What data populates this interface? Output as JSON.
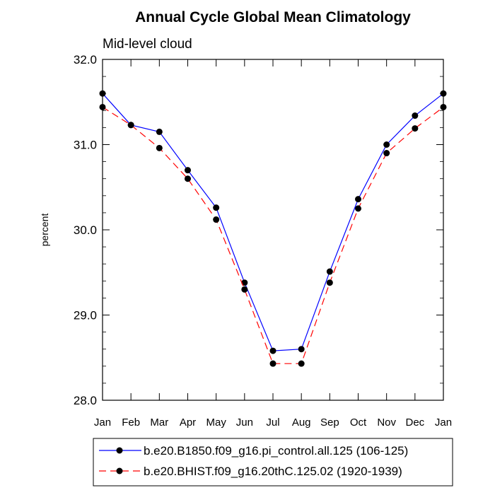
{
  "chart_data": {
    "type": "line",
    "title": "Annual Cycle Global Mean Climatology",
    "subtitle": "Mid-level cloud",
    "xlabel": "",
    "ylabel": "percent",
    "categories": [
      "Jan",
      "Feb",
      "Mar",
      "Apr",
      "May",
      "Jun",
      "Jul",
      "Aug",
      "Sep",
      "Oct",
      "Nov",
      "Dec",
      "Jan"
    ],
    "ylim": [
      28.0,
      32.0
    ],
    "yticks": [
      "28.0",
      "29.0",
      "30.0",
      "31.0",
      "32.0"
    ],
    "y_minor_step": 0.2,
    "grid": false,
    "legend_position": "bottom",
    "series": [
      {
        "name": "b.e20.B1850.f09_g16.pi_control.all.125 (106-125)",
        "color": "#0000ff",
        "line_style": "solid",
        "marker": "filled-circle",
        "values": [
          31.6,
          31.23,
          31.15,
          30.7,
          30.26,
          29.38,
          28.58,
          28.6,
          29.51,
          30.36,
          31.0,
          31.34,
          31.6
        ]
      },
      {
        "name": "b.e20.BHIST.f09_g16.20thC.125.02 (1920-1939)",
        "color": "#ff0000",
        "line_style": "dashed",
        "marker": "filled-circle",
        "values": [
          31.44,
          31.23,
          30.96,
          30.6,
          30.12,
          29.3,
          28.43,
          28.43,
          29.38,
          30.25,
          30.9,
          31.19,
          31.44
        ]
      }
    ]
  }
}
